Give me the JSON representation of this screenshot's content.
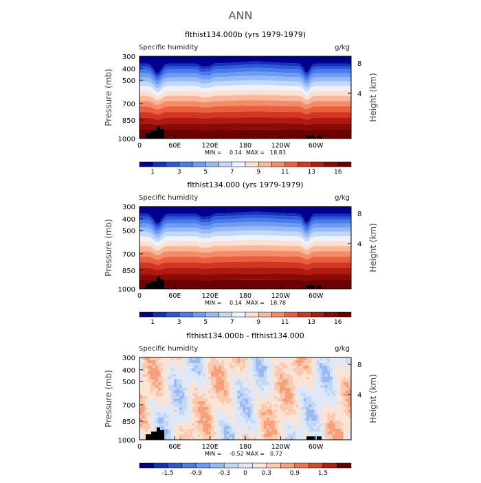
{
  "figure": {
    "title": "ANN"
  },
  "chart_data": [
    {
      "type": "heatmap",
      "title": "flthist134.000b (yrs 1979-1979)",
      "field_label": "Specific humidity",
      "units": "g/kg",
      "ylabel": "Pressure (mb)",
      "ylabel_right": "Height (km)",
      "y_ticks": [
        300,
        400,
        500,
        700,
        850,
        1000
      ],
      "y_right_ticks": [
        8,
        4
      ],
      "x_ticks": [
        "0",
        "60E",
        "120E",
        "180",
        "120W",
        "60W"
      ],
      "stats": {
        "min_label": "MIN =",
        "min": "0.14",
        "max_label": "MAX =",
        "max": "18.83"
      },
      "colorbar_labels": [
        "1",
        "3",
        "5",
        "7",
        "9",
        "11",
        "13",
        "16"
      ],
      "colors": [
        "#00008c",
        "#1530c0",
        "#2b5ad6",
        "#4a7ce8",
        "#6f9cf2",
        "#98bbf5",
        "#c3d8f5",
        "#eef2ff",
        "#fde0cf",
        "#fbb799",
        "#f68b67",
        "#ea5f3e",
        "#d23722",
        "#b01a10",
        "#8a0a05",
        "#6a0000"
      ]
    },
    {
      "type": "heatmap",
      "title": "flthist134.000 (yrs 1979-1979)",
      "field_label": "Specific humidity",
      "units": "g/kg",
      "ylabel": "Pressure (mb)",
      "ylabel_right": "Height (km)",
      "y_ticks": [
        300,
        400,
        500,
        700,
        850,
        1000
      ],
      "y_right_ticks": [
        8,
        4
      ],
      "x_ticks": [
        "0",
        "60E",
        "120E",
        "180",
        "120W",
        "60W"
      ],
      "stats": {
        "min_label": "MIN =",
        "min": "0.14",
        "max_label": "MAX =",
        "max": "18.78"
      },
      "colorbar_labels": [
        "1",
        "3",
        "5",
        "7",
        "9",
        "11",
        "13",
        "16"
      ],
      "colors": [
        "#00008c",
        "#1530c0",
        "#2b5ad6",
        "#4a7ce8",
        "#6f9cf2",
        "#98bbf5",
        "#c3d8f5",
        "#eef2ff",
        "#fde0cf",
        "#fbb799",
        "#f68b67",
        "#ea5f3e",
        "#d23722",
        "#b01a10",
        "#8a0a05",
        "#6a0000"
      ]
    },
    {
      "type": "heatmap",
      "title": "flthist134.000b - flthist134.000",
      "field_label": "Specific humidity",
      "units": "g/kg",
      "ylabel": "Pressure (mb)",
      "ylabel_right": "Height (km)",
      "y_ticks": [
        300,
        400,
        500,
        700,
        850,
        1000
      ],
      "y_right_ticks": [
        8,
        4
      ],
      "x_ticks": [
        "0",
        "60E",
        "120E",
        "180",
        "120W",
        "60W"
      ],
      "stats": {
        "min_label": "MIN =",
        "min": "-0.52",
        "max_label": "MAX =",
        "max": "0.72"
      },
      "colorbar_labels": [
        "-1.5",
        "-0.9",
        "-0.3",
        "0",
        "0.3",
        "0.9",
        "1.5"
      ],
      "colors": [
        "#00008c",
        "#1530c0",
        "#2b5ad6",
        "#4a7ce8",
        "#6f9cf2",
        "#98bbf5",
        "#c3d8f5",
        "#dde8f8",
        "#fbe3d5",
        "#fbc9ad",
        "#f7a07a",
        "#ee7650",
        "#d8472c",
        "#b52015",
        "#6a0000"
      ]
    }
  ]
}
